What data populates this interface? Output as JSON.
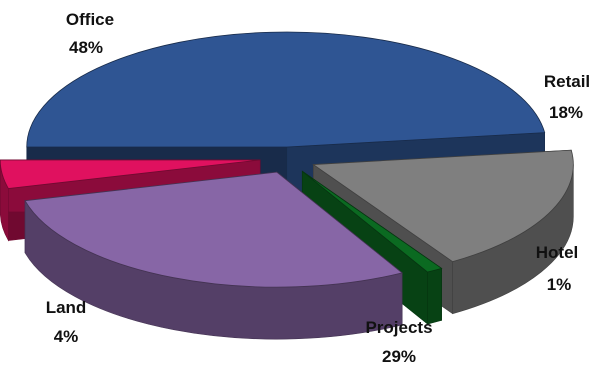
{
  "chart_data": {
    "type": "pie",
    "title": "",
    "style": "3d-exploded",
    "slices": [
      {
        "label": "Office",
        "value": 48,
        "value_label": "48%",
        "color": "#2F5593"
      },
      {
        "label": "Retail",
        "value": 18,
        "value_label": "18%",
        "color": "#7F7F7F"
      },
      {
        "label": "Hotel",
        "value": 1,
        "value_label": "1%",
        "color": "#0B6A21"
      },
      {
        "label": "Projects",
        "value": 29,
        "value_label": "29%",
        "color": "#8766A6"
      },
      {
        "label": "Land",
        "value": 4,
        "value_label": "4%",
        "color": "#E0115F"
      }
    ]
  }
}
